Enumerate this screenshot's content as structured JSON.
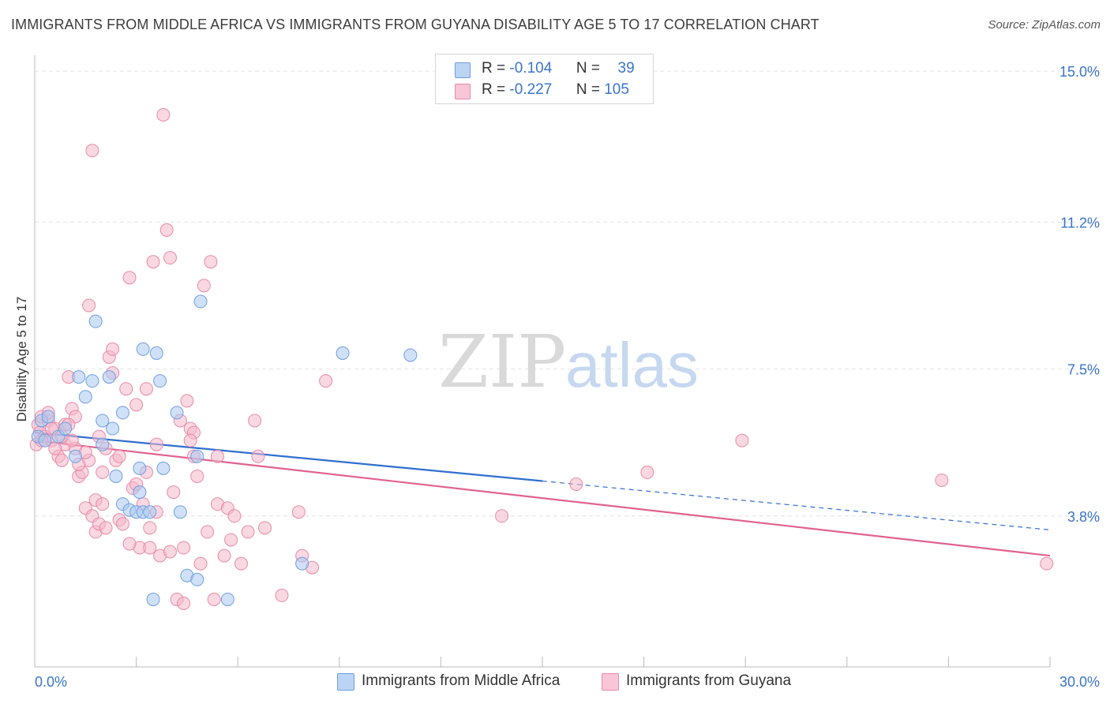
{
  "title": "IMMIGRANTS FROM MIDDLE AFRICA VS IMMIGRANTS FROM GUYANA DISABILITY AGE 5 TO 17 CORRELATION CHART",
  "source": "Source: ZipAtlas.com",
  "watermark": {
    "zip": "ZIP",
    "atlas": "atlas"
  },
  "legend": {
    "r_label": "R =",
    "n_label": "N =",
    "rows": [
      {
        "r": "-0.104",
        "n": "39"
      },
      {
        "r": "-0.227",
        "n": "105"
      }
    ]
  },
  "colors": {
    "blue_fill": "#a9c8f0",
    "blue_stroke": "#6f9fe0",
    "blue_line": "#2f6fcf",
    "pink_fill": "#f4b8cb",
    "pink_stroke": "#e98aa8",
    "pink_line": "#e0628f",
    "tick_label": "#3a74c9",
    "grid": "#e2e2e2"
  },
  "chart_data": {
    "type": "scatter",
    "title": "IMMIGRANTS FROM MIDDLE AFRICA VS IMMIGRANTS FROM GUYANA DISABILITY AGE 5 TO 17 CORRELATION CHART",
    "xlabel": "",
    "ylabel": "Disability Age 5 to 17",
    "xlim": [
      0,
      30
    ],
    "ylim": [
      0,
      15.4
    ],
    "x_tick_labels": [
      "0.0%",
      "30.0%"
    ],
    "y_ticks": [
      3.8,
      7.5,
      11.2,
      15.0
    ],
    "y_tick_labels": [
      "3.8%",
      "7.5%",
      "11.2%",
      "15.0%"
    ],
    "grid": true,
    "legend_position": "top-center",
    "series": [
      {
        "name": "Immigrants from Middle Africa",
        "color": "#a9c8f0",
        "trend": {
          "x0": 0,
          "y0": 5.9,
          "x1": 15,
          "y1": 4.68,
          "dashed_to_x": 30,
          "dashed_to_y": 3.45
        },
        "points": [
          [
            0.1,
            5.8
          ],
          [
            0.2,
            6.2
          ],
          [
            0.3,
            5.7
          ],
          [
            0.4,
            6.3
          ],
          [
            0.7,
            5.8
          ],
          [
            0.9,
            6.0
          ],
          [
            1.2,
            5.3
          ],
          [
            1.3,
            7.3
          ],
          [
            1.5,
            6.8
          ],
          [
            1.7,
            7.2
          ],
          [
            1.8,
            8.7
          ],
          [
            2.0,
            5.6
          ],
          [
            2.0,
            6.2
          ],
          [
            2.2,
            7.3
          ],
          [
            2.3,
            6.0
          ],
          [
            2.4,
            4.8
          ],
          [
            2.6,
            6.4
          ],
          [
            2.6,
            4.1
          ],
          [
            2.8,
            3.95
          ],
          [
            3.0,
            3.9
          ],
          [
            3.1,
            5.0
          ],
          [
            3.1,
            4.4
          ],
          [
            3.2,
            3.9
          ],
          [
            3.4,
            3.9
          ],
          [
            3.2,
            8.0
          ],
          [
            3.6,
            7.9
          ],
          [
            3.7,
            7.2
          ],
          [
            3.8,
            5.0
          ],
          [
            4.2,
            6.4
          ],
          [
            4.3,
            3.9
          ],
          [
            4.5,
            2.3
          ],
          [
            4.8,
            2.2
          ],
          [
            4.8,
            5.3
          ],
          [
            4.9,
            9.2
          ],
          [
            5.7,
            1.7
          ],
          [
            7.9,
            2.6
          ],
          [
            9.1,
            7.9
          ],
          [
            11.1,
            7.85
          ],
          [
            3.5,
            1.7
          ]
        ]
      },
      {
        "name": "Immigrants from Guyana",
        "color": "#f4b8cb",
        "trend": {
          "x0": 0,
          "y0": 5.7,
          "x1": 30,
          "y1": 2.8
        },
        "points": [
          [
            0.05,
            5.6
          ],
          [
            0.1,
            6.1
          ],
          [
            0.15,
            5.9
          ],
          [
            0.2,
            6.3
          ],
          [
            0.3,
            5.8
          ],
          [
            0.4,
            6.2
          ],
          [
            0.5,
            5.7
          ],
          [
            0.6,
            6.0
          ],
          [
            0.7,
            5.3
          ],
          [
            0.8,
            5.2
          ],
          [
            0.9,
            5.6
          ],
          [
            1.0,
            7.3
          ],
          [
            1.1,
            6.5
          ],
          [
            1.2,
            6.3
          ],
          [
            1.2,
            5.5
          ],
          [
            1.3,
            4.8
          ],
          [
            1.4,
            4.9
          ],
          [
            1.5,
            4.0
          ],
          [
            1.6,
            5.2
          ],
          [
            1.7,
            3.8
          ],
          [
            1.8,
            3.4
          ],
          [
            1.9,
            3.6
          ],
          [
            2.0,
            4.9
          ],
          [
            2.1,
            3.5
          ],
          [
            2.2,
            7.8
          ],
          [
            2.3,
            8.0
          ],
          [
            2.3,
            7.4
          ],
          [
            2.4,
            5.2
          ],
          [
            2.5,
            3.7
          ],
          [
            2.6,
            3.6
          ],
          [
            2.7,
            7.0
          ],
          [
            2.8,
            9.8
          ],
          [
            2.9,
            4.5
          ],
          [
            3.0,
            6.6
          ],
          [
            3.1,
            3.0
          ],
          [
            3.2,
            4.1
          ],
          [
            3.3,
            4.9
          ],
          [
            3.4,
            3.5
          ],
          [
            3.4,
            3.0
          ],
          [
            3.5,
            10.2
          ],
          [
            3.6,
            3.9
          ],
          [
            3.7,
            2.8
          ],
          [
            3.9,
            11.0
          ],
          [
            4.0,
            10.3
          ],
          [
            4.1,
            4.4
          ],
          [
            4.2,
            1.7
          ],
          [
            4.3,
            6.2
          ],
          [
            4.4,
            1.6
          ],
          [
            4.5,
            6.7
          ],
          [
            4.6,
            6.0
          ],
          [
            4.7,
            5.9
          ],
          [
            4.7,
            5.3
          ],
          [
            4.8,
            4.8
          ],
          [
            4.9,
            2.6
          ],
          [
            5.0,
            9.6
          ],
          [
            5.1,
            3.4
          ],
          [
            5.2,
            10.2
          ],
          [
            5.3,
            1.7
          ],
          [
            5.4,
            5.3
          ],
          [
            5.4,
            4.1
          ],
          [
            5.6,
            2.8
          ],
          [
            5.7,
            4.0
          ],
          [
            5.8,
            3.2
          ],
          [
            5.9,
            3.8
          ],
          [
            6.1,
            2.6
          ],
          [
            6.3,
            3.4
          ],
          [
            6.5,
            6.2
          ],
          [
            6.6,
            5.3
          ],
          [
            6.8,
            3.5
          ],
          [
            7.3,
            1.8
          ],
          [
            7.8,
            3.9
          ],
          [
            7.9,
            2.8
          ],
          [
            8.2,
            2.5
          ],
          [
            8.6,
            7.2
          ],
          [
            13.8,
            3.8
          ],
          [
            16.0,
            4.6
          ],
          [
            18.1,
            4.9
          ],
          [
            20.9,
            5.7
          ],
          [
            26.8,
            4.7
          ],
          [
            29.9,
            2.6
          ],
          [
            0.4,
            6.4
          ],
          [
            0.6,
            5.5
          ],
          [
            0.9,
            6.1
          ],
          [
            1.1,
            5.7
          ],
          [
            1.3,
            5.1
          ],
          [
            1.5,
            5.4
          ],
          [
            1.8,
            4.2
          ],
          [
            2.0,
            4.1
          ],
          [
            2.5,
            5.3
          ],
          [
            3.0,
            4.6
          ],
          [
            3.6,
            5.6
          ],
          [
            4.0,
            2.9
          ],
          [
            4.4,
            3.0
          ],
          [
            1.7,
            13.0
          ],
          [
            3.8,
            13.9
          ],
          [
            1.6,
            9.1
          ],
          [
            2.8,
            3.1
          ],
          [
            0.2,
            5.7
          ],
          [
            0.5,
            6.0
          ],
          [
            0.8,
            5.8
          ],
          [
            1.0,
            6.1
          ],
          [
            1.9,
            5.8
          ],
          [
            2.1,
            5.5
          ],
          [
            3.3,
            7.0
          ],
          [
            4.6,
            5.7
          ]
        ]
      }
    ]
  },
  "bottom_legend": [
    {
      "label": "Immigrants from Middle Africa"
    },
    {
      "label": "Immigrants from Guyana"
    }
  ]
}
